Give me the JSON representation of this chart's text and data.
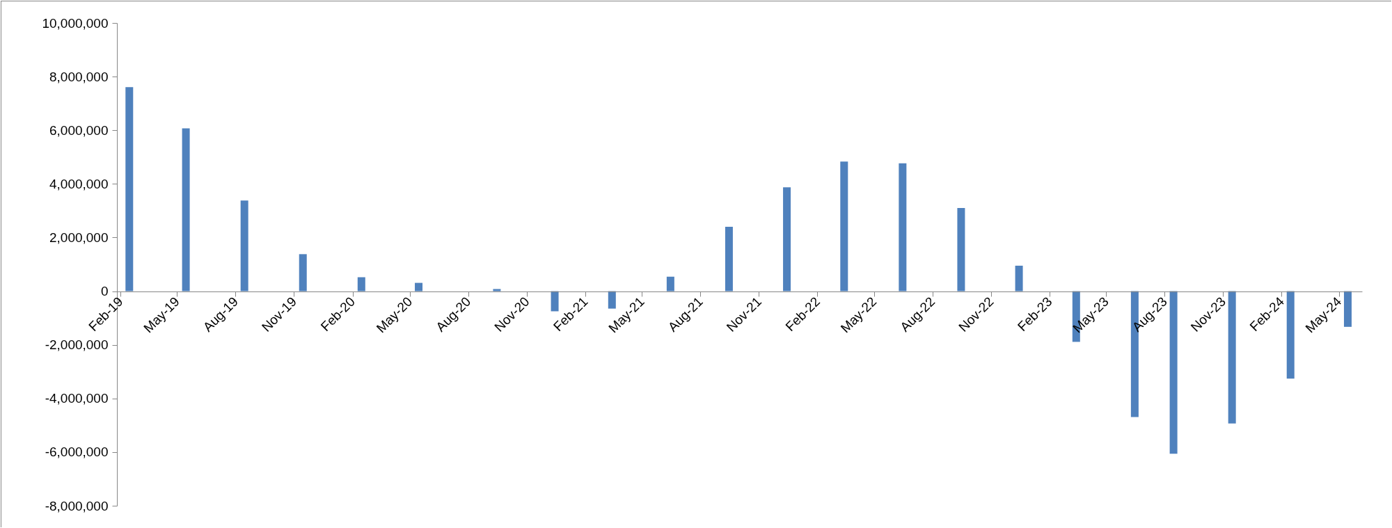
{
  "chart_data": {
    "type": "bar",
    "color": "#4f81bd",
    "x": [
      "2019-02-15",
      "2019-05-15",
      "2019-08-15",
      "2019-11-15",
      "2020-02-15",
      "2020-05-15",
      "2020-09-15",
      "2020-12-15",
      "2021-03-15",
      "2021-06-15",
      "2021-09-15",
      "2021-12-15",
      "2022-03-15",
      "2022-06-15",
      "2022-09-15",
      "2022-12-15",
      "2023-03-15",
      "2023-06-15",
      "2023-08-15",
      "2023-11-15",
      "2024-02-15",
      "2024-05-15"
    ],
    "values": [
      7610000,
      6070000,
      3380000,
      1380000,
      520000,
      310000,
      80000,
      -750000,
      -650000,
      540000,
      2400000,
      3870000,
      4830000,
      4770000,
      3100000,
      950000,
      -1890000,
      -4690000,
      -6060000,
      -4930000,
      -3260000,
      -1330000
    ],
    "xlim": [
      "2019-02",
      "2024-06"
    ],
    "xticks": [
      {
        "value": "2019-02",
        "label": "Feb-19"
      },
      {
        "value": "2019-05",
        "label": "May-19"
      },
      {
        "value": "2019-08",
        "label": "Aug-19"
      },
      {
        "value": "2019-11",
        "label": "Nov-19"
      },
      {
        "value": "2020-02",
        "label": "Feb-20"
      },
      {
        "value": "2020-05",
        "label": "May-20"
      },
      {
        "value": "2020-08",
        "label": "Aug-20"
      },
      {
        "value": "2020-11",
        "label": "Nov-20"
      },
      {
        "value": "2021-02",
        "label": "Feb-21"
      },
      {
        "value": "2021-05",
        "label": "May-21"
      },
      {
        "value": "2021-08",
        "label": "Aug-21"
      },
      {
        "value": "2021-11",
        "label": "Nov-21"
      },
      {
        "value": "2022-02",
        "label": "Feb-22"
      },
      {
        "value": "2022-05",
        "label": "May-22"
      },
      {
        "value": "2022-08",
        "label": "Aug-22"
      },
      {
        "value": "2022-11",
        "label": "Nov-22"
      },
      {
        "value": "2023-02",
        "label": "Feb-23"
      },
      {
        "value": "2023-05",
        "label": "May-23"
      },
      {
        "value": "2023-08",
        "label": "Aug-23"
      },
      {
        "value": "2023-11",
        "label": "Nov-23"
      },
      {
        "value": "2024-02",
        "label": "Feb-24"
      },
      {
        "value": "2024-05",
        "label": "May-24"
      }
    ],
    "ylim": [
      -8000000,
      10000000
    ],
    "yticks": [
      {
        "value": -8000000,
        "label": "-8,000,000"
      },
      {
        "value": -6000000,
        "label": "-6,000,000"
      },
      {
        "value": -4000000,
        "label": "-4,000,000"
      },
      {
        "value": -2000000,
        "label": "-2,000,000"
      },
      0,
      {
        "value": 2000000,
        "label": "2,000,000"
      },
      {
        "value": 4000000,
        "label": "4,000,000"
      },
      {
        "value": 6000000,
        "label": "6,000,000"
      },
      {
        "value": 8000000,
        "label": "8,000,000"
      },
      {
        "value": 10000000,
        "label": "10,000,000"
      }
    ],
    "grid": false
  }
}
